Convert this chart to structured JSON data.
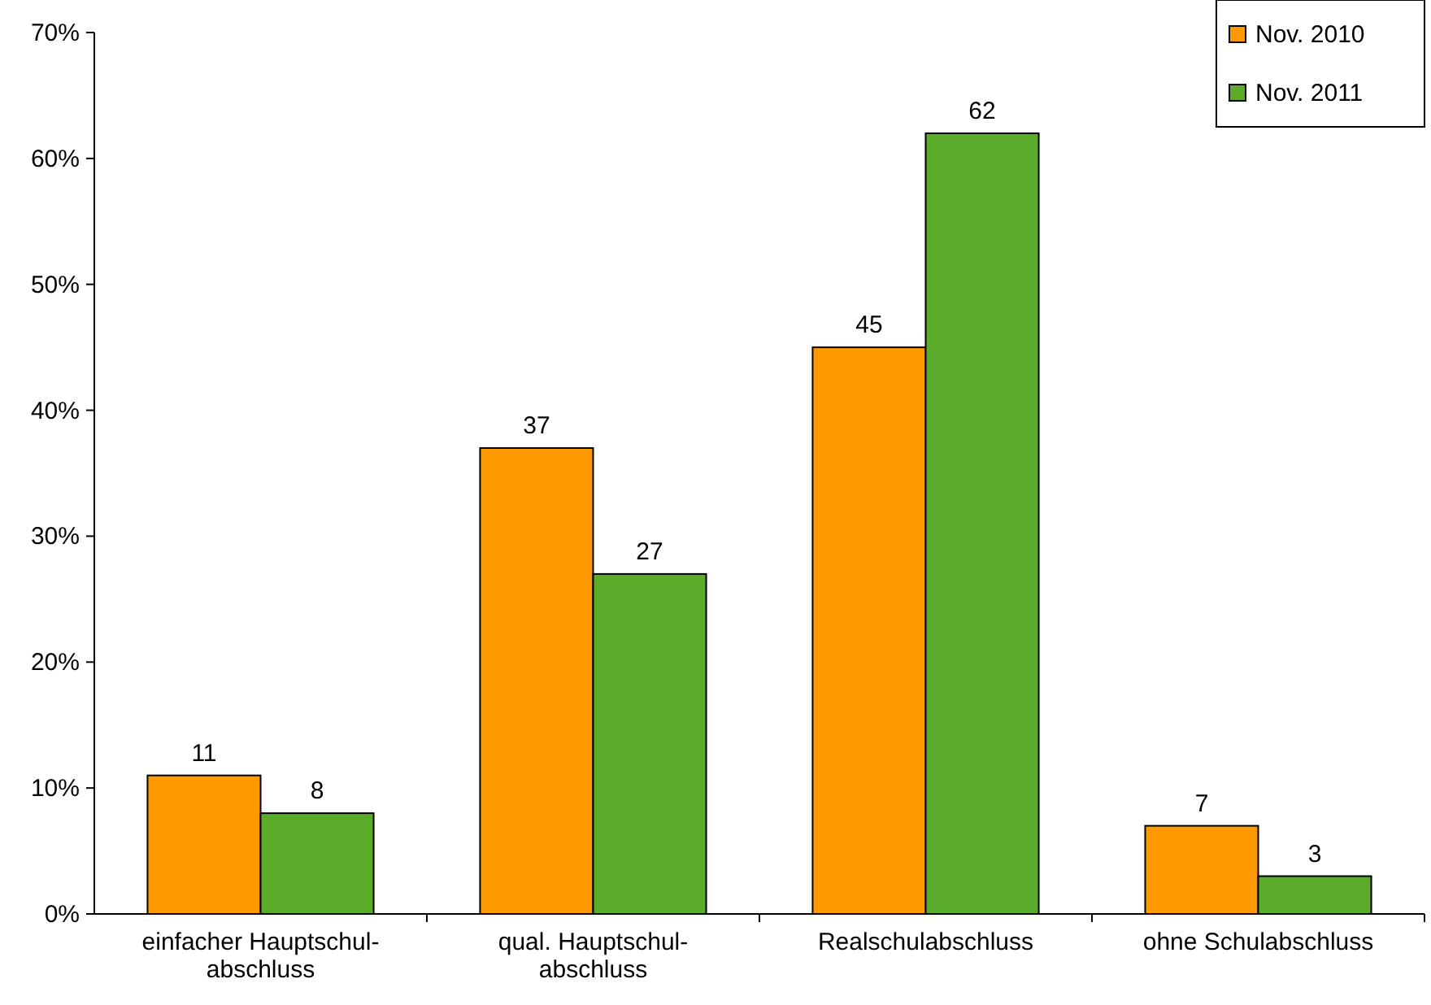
{
  "chart_data": {
    "type": "bar",
    "categories": [
      "einfacher Hauptschul-\nabschluss",
      "qual. Hauptschul-\nabschluss",
      "Realschulabschluss",
      "ohne Schulabschluss"
    ],
    "series": [
      {
        "name": "Nov. 2010",
        "color": "#ff9900",
        "values": [
          11,
          37,
          45,
          7
        ]
      },
      {
        "name": "Nov. 2011",
        "color": "#5aac2a",
        "values": [
          8,
          27,
          62,
          3
        ]
      }
    ],
    "ylim": [
      0,
      70
    ],
    "yticks": [
      {
        "value": 0,
        "label": "0%"
      },
      {
        "value": 10,
        "label": "10%"
      },
      {
        "value": 20,
        "label": "20%"
      },
      {
        "value": 30,
        "label": "30%"
      },
      {
        "value": 40,
        "label": "40%"
      },
      {
        "value": 50,
        "label": "50%"
      },
      {
        "value": 60,
        "label": "60%"
      },
      {
        "value": 70,
        "label": "70%"
      }
    ],
    "data_labels": true,
    "grid": false,
    "legend": "top right"
  }
}
